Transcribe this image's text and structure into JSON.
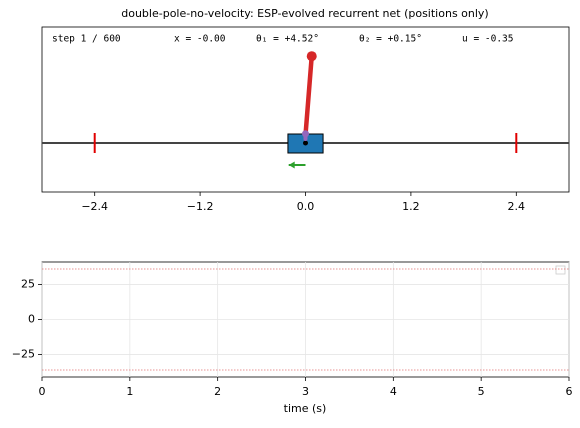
{
  "chart_data": [
    {
      "type": "cartpole",
      "title": "double-pole-no-velocity: ESP-evolved recurrent net (positions only)",
      "info": [
        "step    1 / 600",
        "x = -0.00",
        "θ₁ =  +4.52°",
        "θ₂ =  +0.15°",
        "u = -0.35"
      ],
      "cart_x": 0,
      "theta1": 4.52,
      "theta2": 0.15,
      "action": -0.35,
      "track_limits": [
        -2.4,
        2.4
      ],
      "xlim": [
        -3,
        3
      ],
      "xticks": [
        {
          "value": -2.4,
          "label": "−2.4"
        },
        {
          "value": -1.2,
          "label": "−1.2"
        },
        {
          "value": 0,
          "label": "0.0"
        },
        1.2,
        2.4
      ],
      "colors": {
        "cart": "#1f77b4",
        "pole1": "#d62728",
        "pole2": "#9467bd",
        "limits": "#e00000",
        "action": "#2ca02c",
        "track": "#444444"
      }
    },
    {
      "type": "line",
      "xlabel": "time (s)",
      "xlim": [
        0,
        6
      ],
      "xticks": [
        0,
        1,
        2,
        3,
        4,
        5,
        6
      ],
      "ylim": [
        -41,
        41
      ],
      "yticks": [
        {
          "value": -25,
          "label": "−25"
        },
        0,
        25
      ],
      "threshold_lines": [
        36,
        -36
      ],
      "threshold_color": "#e07070",
      "grid": true
    }
  ]
}
